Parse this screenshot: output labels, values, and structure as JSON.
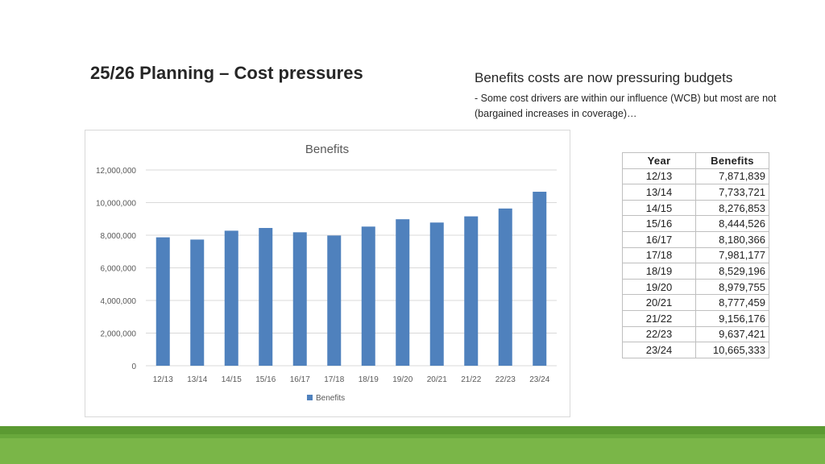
{
  "slide": {
    "title": "25/26 Planning – Cost pressures",
    "note_heading": "Benefits costs are now pressuring budgets",
    "note_body": "- Some cost drivers are within our influence (WCB) but most are not (bargained increases in coverage)…"
  },
  "chart_data": {
    "type": "bar",
    "title": "Benefits",
    "categories": [
      "12/13",
      "13/14",
      "14/15",
      "15/16",
      "16/17",
      "17/18",
      "18/19",
      "19/20",
      "20/21",
      "21/22",
      "22/23",
      "23/24"
    ],
    "series": [
      {
        "name": "Benefits",
        "values": [
          7871839,
          7733721,
          8276853,
          8444526,
          8180366,
          7981177,
          8529196,
          8979755,
          8777459,
          9156176,
          9637421,
          10665333
        ]
      }
    ],
    "ylim": [
      0,
      12000000
    ],
    "yticks": [
      0,
      2000000,
      4000000,
      6000000,
      8000000,
      10000000,
      12000000
    ],
    "ytick_labels": [
      "0",
      "2,000,000",
      "4,000,000",
      "6,000,000",
      "8,000,000",
      "10,000,000",
      "12,000,000"
    ],
    "grid": true,
    "legend_position": "bottom",
    "bar_color": "#4f81bd"
  },
  "table": {
    "headers": [
      "Year",
      "Benefits"
    ],
    "rows": [
      [
        "12/13",
        "7,871,839"
      ],
      [
        "13/14",
        "7,733,721"
      ],
      [
        "14/15",
        "8,276,853"
      ],
      [
        "15/16",
        "8,444,526"
      ],
      [
        "16/17",
        "8,180,366"
      ],
      [
        "17/18",
        "7,981,177"
      ],
      [
        "18/19",
        "8,529,196"
      ],
      [
        "19/20",
        "8,979,755"
      ],
      [
        "20/21",
        "8,777,459"
      ],
      [
        "21/22",
        "9,156,176"
      ],
      [
        "22/23",
        "9,637,421"
      ],
      [
        "23/24",
        "10,665,333"
      ]
    ]
  }
}
